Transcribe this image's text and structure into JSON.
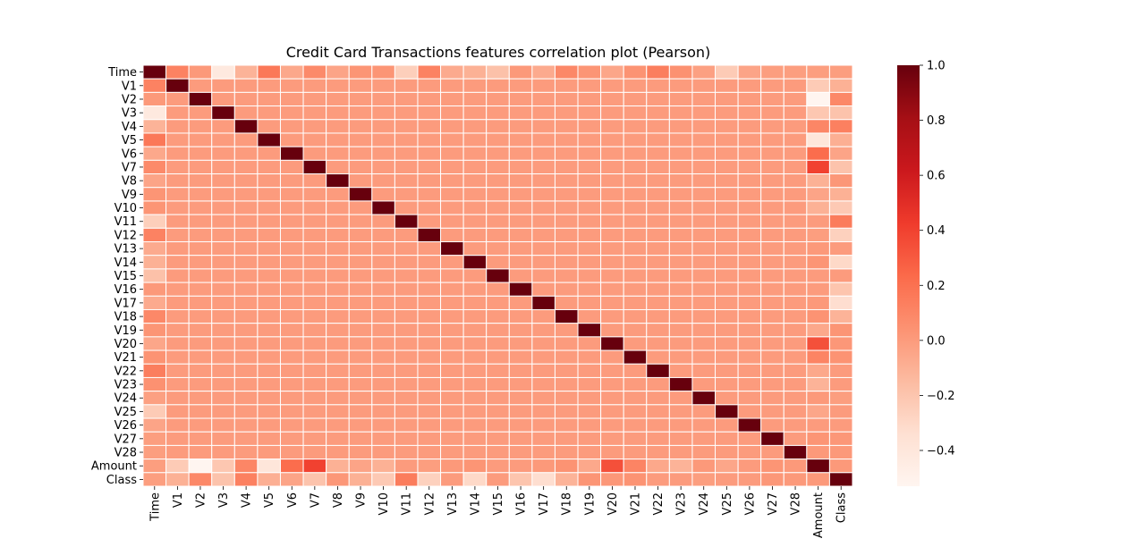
{
  "chart_data": {
    "type": "heatmap",
    "title": "Credit Card Transactions features correlation plot (Pearson)",
    "xlabel": "",
    "ylabel": "",
    "labels": [
      "Time",
      "V1",
      "V2",
      "V3",
      "V4",
      "V5",
      "V6",
      "V7",
      "V8",
      "V9",
      "V10",
      "V11",
      "V12",
      "V13",
      "V14",
      "V15",
      "V16",
      "V17",
      "V18",
      "V19",
      "V20",
      "V21",
      "V22",
      "V23",
      "V24",
      "V25",
      "V26",
      "V27",
      "V28",
      "Amount",
      "Class"
    ],
    "colormap": "Reds",
    "colorbar": {
      "min": -0.53,
      "max": 1.0,
      "ticks": [
        1.0,
        0.8,
        0.6,
        0.4,
        0.2,
        0.0,
        -0.2,
        -0.4
      ],
      "tick_labels": [
        "1.0",
        "0.8",
        "0.6",
        "0.4",
        "0.2",
        "0.0",
        "−0.2",
        "−0.4"
      ]
    },
    "time_row": [
      1.0,
      0.12,
      0.01,
      -0.42,
      -0.11,
      0.17,
      -0.06,
      0.08,
      -0.04,
      0.03,
      0.03,
      -0.25,
      0.12,
      -0.07,
      -0.1,
      -0.18,
      0.01,
      -0.07,
      0.09,
      0.03,
      -0.05,
      0.04,
      0.14,
      0.05,
      -0.02,
      -0.23,
      -0.04,
      -0.01,
      -0.01,
      -0.01,
      -0.01
    ],
    "amount_row": [
      -0.01,
      -0.23,
      -0.53,
      -0.21,
      0.1,
      -0.39,
      0.22,
      0.4,
      -0.1,
      -0.04,
      -0.1,
      0.0,
      -0.01,
      0.01,
      0.03,
      -0.0,
      -0.0,
      0.01,
      0.04,
      -0.06,
      0.34,
      0.11,
      -0.06,
      -0.11,
      0.01,
      -0.05,
      -0.0,
      0.03,
      0.01,
      1.0,
      0.01
    ],
    "class_row": [
      -0.01,
      -0.1,
      0.09,
      -0.19,
      0.13,
      -0.09,
      -0.04,
      -0.19,
      0.02,
      -0.1,
      -0.22,
      0.15,
      -0.26,
      -0.0,
      -0.3,
      -0.0,
      -0.2,
      -0.33,
      -0.11,
      0.03,
      0.02,
      0.04,
      0.0,
      -0.0,
      -0.01,
      0.0,
      0.0,
      0.02,
      0.01,
      0.01,
      1.0
    ],
    "other_pairs_value": 0.0
  }
}
